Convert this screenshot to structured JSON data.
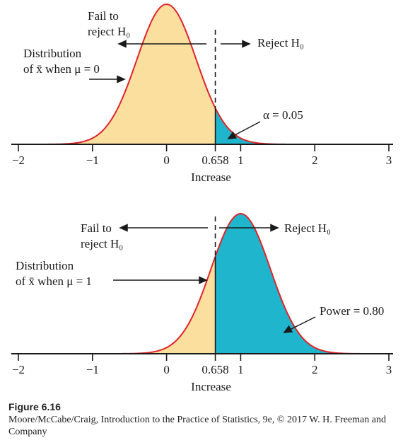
{
  "panels": [
    {
      "id": "top",
      "mu": 0,
      "rejection_left_label": [
        "Fail to",
        "reject H₀"
      ],
      "rejection_right_label": "Reject H₀",
      "distribution_label": [
        "Distribution",
        "of x̄ when μ = 0"
      ],
      "area_label": "α = 0.05",
      "xlabel": "Increase",
      "ticks": [
        "−2",
        "−1",
        "0",
        "0.658",
        "1",
        "2",
        "3"
      ],
      "tick_values": [
        -2,
        -1,
        0,
        0.658,
        1,
        2,
        3
      ]
    },
    {
      "id": "bottom",
      "mu": 1,
      "rejection_left_label": [
        "Fail to",
        "reject H₀"
      ],
      "rejection_right_label": "Reject H₀",
      "distribution_label": [
        "Distribution",
        "of x̄ when μ = 1"
      ],
      "area_label": "Power = 0.80",
      "xlabel": "Increase",
      "ticks": [
        "−2",
        "−1",
        "0",
        "0.658",
        "1",
        "2",
        "3"
      ],
      "tick_values": [
        -2,
        -1,
        0,
        0.658,
        1,
        2,
        3
      ]
    }
  ],
  "critical_value": 0.658,
  "sigma": 0.4,
  "xlim": [
    -2,
    3
  ],
  "colors": {
    "curve": "#e0232b",
    "fail_region": "#fbdf9e",
    "reject_region": "#1fb5cd",
    "axis": "#1a1a1a"
  },
  "caption": {
    "label": "Figure 6.16",
    "text": "Moore/McCabe/Craig, Introduction to the Practice of Statistics, 9e, © 2017 W. H. Freeman and Company"
  }
}
